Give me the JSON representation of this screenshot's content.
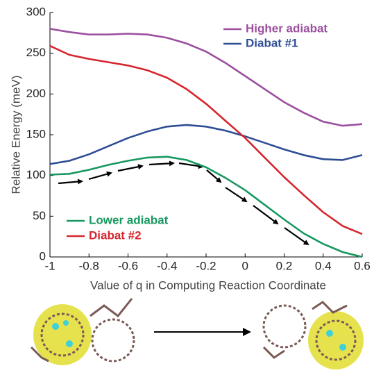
{
  "chart_data": {
    "type": "line",
    "x": [
      -1,
      -0.9,
      -0.8,
      -0.7,
      -0.6,
      -0.5,
      -0.4,
      -0.3,
      -0.2,
      -0.1,
      0,
      0.1,
      0.2,
      0.3,
      0.4,
      0.5,
      0.6
    ],
    "series": [
      {
        "name": "Higher adiabat",
        "color": "#9b4f9e",
        "values": [
          280,
          276,
          273,
          273,
          274,
          273,
          269,
          262,
          252,
          238,
          222,
          206,
          190,
          177,
          166,
          161,
          163
        ]
      },
      {
        "name": "Diabat #1",
        "color": "#2f4d95",
        "values": [
          114,
          118,
          126,
          136,
          146,
          154,
          160,
          162,
          160,
          155,
          148,
          140,
          132,
          125,
          120,
          119,
          125
        ]
      },
      {
        "name": "Lower adiabat",
        "color": "#16985f",
        "values": [
          101,
          102,
          107,
          113,
          118,
          122,
          123,
          119,
          110,
          97,
          82,
          64,
          46,
          29,
          16,
          6,
          0
        ]
      },
      {
        "name": "Diabat #2",
        "color": "#d6262e",
        "values": [
          259,
          248,
          243,
          239,
          235,
          229,
          220,
          206,
          188,
          167,
          146,
          122,
          98,
          76,
          55,
          38,
          28
        ]
      }
    ],
    "x_label": "Value of q in Computing Reaction Coordinate",
    "y_label": "Relative Energy (meV)",
    "xlim": [
      -1,
      0.6
    ],
    "xticks": [
      -1,
      -0.8,
      -0.6,
      -0.4,
      -0.2,
      0,
      0.2,
      0.4,
      0.6
    ],
    "ylim": [
      0,
      300
    ],
    "yticks": [
      0,
      50,
      100,
      150,
      200,
      250,
      300
    ]
  }
}
